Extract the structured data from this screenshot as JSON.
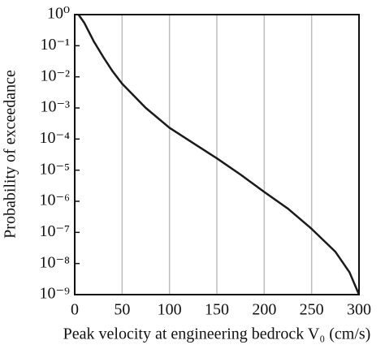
{
  "chart_data": {
    "type": "line",
    "x_label": "Peak velocity at engineering bedrock V₀ (cm/s)",
    "y_label": "Probability of exceedance",
    "log_y": true,
    "grid": "x",
    "xlim": [
      0,
      300
    ],
    "xticks": [
      0,
      50,
      100,
      150,
      200,
      250,
      300
    ],
    "ylim": [
      1e-09,
      1
    ],
    "yticks": [
      {
        "value": 1,
        "label": "10⁰"
      },
      {
        "value": 0.1,
        "label": "10⁻¹"
      },
      {
        "value": 0.01,
        "label": "10⁻²"
      },
      {
        "value": 0.001,
        "label": "10⁻³"
      },
      {
        "value": 0.0001,
        "label": "10⁻⁴"
      },
      {
        "value": 1e-05,
        "label": "10⁻⁵"
      },
      {
        "value": 1e-06,
        "label": "10⁻⁶"
      },
      {
        "value": 1e-07,
        "label": "10⁻⁷"
      },
      {
        "value": 1e-08,
        "label": "10⁻⁸"
      },
      {
        "value": 1e-09,
        "label": "10⁻⁹"
      }
    ],
    "series": [
      {
        "color": "#1a1a1a",
        "x": [
          4,
          10,
          20,
          30,
          40,
          50,
          75,
          100,
          125,
          150,
          175,
          200,
          225,
          250,
          275,
          290,
          300
        ],
        "values": [
          1,
          0.55,
          0.14,
          0.044,
          0.015,
          0.006,
          0.001,
          0.00023,
          7.4e-05,
          2.4e-05,
          7.2e-06,
          2e-06,
          5.8e-07,
          1.3e-07,
          2.4e-08,
          5.2e-09,
          1e-09
        ]
      }
    ]
  }
}
